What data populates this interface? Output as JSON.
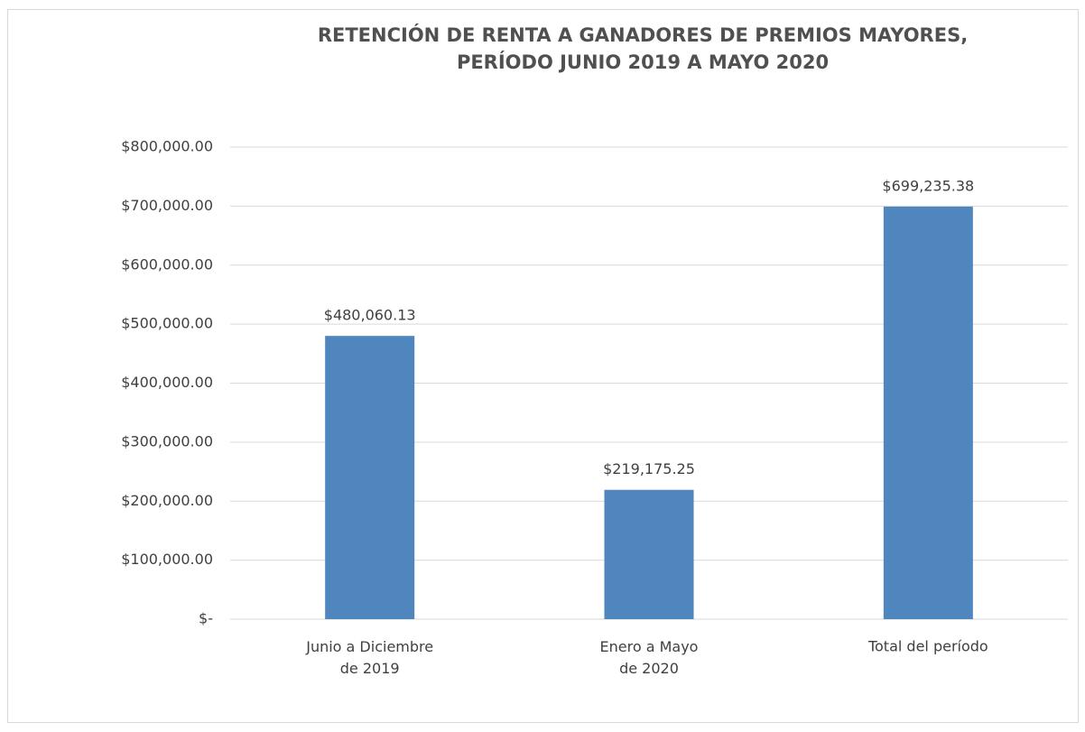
{
  "chart_data": {
    "type": "bar",
    "title": "RETENCIÓN DE RENTA A GANADORES DE PREMIOS MAYORES,\nPERÍODO JUNIO 2019 A MAYO 2020",
    "categories": [
      "Junio a Diciembre\nde 2019",
      "Enero a Mayo\nde 2020",
      "Total del período"
    ],
    "values": [
      480060.13,
      219175.25,
      699235.38
    ],
    "value_labels": [
      "$480,060.13",
      "$219,175.25",
      "$699,235.38"
    ],
    "color": "#4f86bd",
    "ylim": [
      0,
      800000
    ],
    "yticks": [
      {
        "value": 0,
        "label": "$-"
      },
      {
        "value": 100000,
        "label": "$100,000.00"
      },
      {
        "value": 200000,
        "label": "$200,000.00"
      },
      {
        "value": 300000,
        "label": "$300,000.00"
      },
      {
        "value": 400000,
        "label": "$400,000.00"
      },
      {
        "value": 500000,
        "label": "$500,000.00"
      },
      {
        "value": 600000,
        "label": "$600,000.00"
      },
      {
        "value": 700000,
        "label": "$700,000.00"
      },
      {
        "value": 800000,
        "label": "$800,000.00"
      }
    ],
    "grid": true
  }
}
